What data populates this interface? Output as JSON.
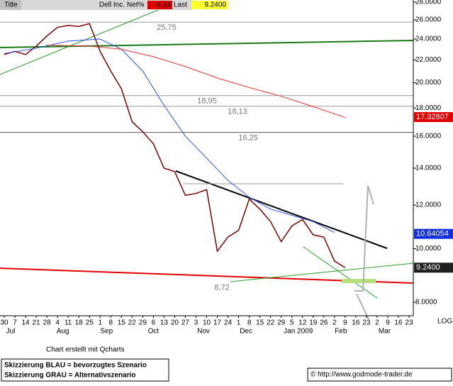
{
  "chart_data": {
    "type": "line",
    "log_scale": true,
    "header": {
      "title": "Title",
      "name": "Dell Inc.",
      "net_label": "Net%",
      "net": -4.14,
      "last_label": "Last",
      "last": {
        "value": 9.24,
        "label": "9.2400"
      }
    },
    "xlim": [
      -0.4,
      38.4
    ],
    "ylim": [
      7.56,
      28.25
    ],
    "xticks": [
      {
        "value": 0,
        "label": "30"
      },
      {
        "value": 1,
        "label": "7"
      },
      {
        "value": 2,
        "label": "14"
      },
      {
        "value": 3,
        "label": "21"
      },
      {
        "value": 4,
        "label": "28"
      },
      {
        "value": 5,
        "label": "4"
      },
      {
        "value": 6,
        "label": "11"
      },
      {
        "value": 7,
        "label": "18"
      },
      {
        "value": 8,
        "label": "25"
      },
      {
        "value": 9,
        "label": "1"
      },
      {
        "value": 10,
        "label": "8"
      },
      {
        "value": 11,
        "label": "15"
      },
      {
        "value": 12,
        "label": "22"
      },
      {
        "value": 13,
        "label": "29"
      },
      {
        "value": 14,
        "label": "6"
      },
      {
        "value": 15,
        "label": "13"
      },
      {
        "value": 16,
        "label": "20"
      },
      {
        "value": 17,
        "label": "27"
      },
      {
        "value": 18,
        "label": "3"
      },
      {
        "value": 19,
        "label": "10"
      },
      {
        "value": 20,
        "label": "17"
      },
      {
        "value": 21,
        "label": "24"
      },
      {
        "value": 22,
        "label": "1"
      },
      {
        "value": 23,
        "label": "8"
      },
      {
        "value": 24,
        "label": "15"
      },
      {
        "value": 25,
        "label": "22"
      },
      {
        "value": 26,
        "label": "29"
      },
      {
        "value": 27,
        "label": "5"
      },
      {
        "value": 28,
        "label": "12"
      },
      {
        "value": 29,
        "label": "19"
      },
      {
        "value": 30,
        "label": "26"
      },
      {
        "value": 31,
        "label": "2"
      },
      {
        "value": 32,
        "label": "9"
      },
      {
        "value": 33,
        "label": "16"
      },
      {
        "value": 34,
        "label": "23"
      },
      {
        "value": 35,
        "label": "2"
      },
      {
        "value": 36,
        "label": "9"
      },
      {
        "value": 37,
        "label": "16"
      },
      {
        "value": 38,
        "label": "23"
      }
    ],
    "months": [
      {
        "value": 0.6,
        "label": "Jul"
      },
      {
        "value": 5.5,
        "label": "Aug"
      },
      {
        "value": 9.6,
        "label": "Sep"
      },
      {
        "value": 14,
        "label": "Oct"
      },
      {
        "value": 18.7,
        "label": "Nov"
      },
      {
        "value": 22.7,
        "label": "Dec"
      },
      {
        "value": 27.6,
        "label": "Jan 2009"
      },
      {
        "value": 31.6,
        "label": "Feb"
      },
      {
        "value": 35.7,
        "label": "Mar"
      }
    ],
    "yticks": [
      {
        "value": 8,
        "label": "8.0000"
      },
      {
        "value": 10,
        "label": "10.0000"
      },
      {
        "value": 12,
        "label": "12.0000"
      },
      {
        "value": 14,
        "label": "14.0000"
      },
      {
        "value": 16,
        "label": "16.0000"
      },
      {
        "value": 18,
        "label": "18.0000"
      },
      {
        "value": 20,
        "label": "20.0000"
      },
      {
        "value": 22,
        "label": "22.0000"
      },
      {
        "value": 24,
        "label": "24.0000"
      },
      {
        "value": 26,
        "label": "26.0000"
      },
      {
        "value": 28,
        "label": "28.0000"
      }
    ],
    "axis_note": "LOG",
    "series": [
      {
        "color": "#7a0000",
        "x": [
          0,
          1,
          2,
          3,
          4,
          5,
          6,
          7,
          8,
          9,
          10,
          11,
          12,
          13,
          14,
          15,
          16,
          17,
          18,
          19,
          20,
          21,
          22,
          23,
          24,
          25,
          26,
          27,
          28,
          29,
          30,
          31,
          32
        ],
        "values": [
          22.5,
          22.8,
          22.5,
          23.3,
          24.3,
          25.2,
          25.4,
          25.3,
          25.6,
          22.8,
          21.0,
          19.5,
          17.0,
          16.3,
          15.5,
          14.0,
          13.8,
          12.5,
          12.6,
          12.8,
          9.9,
          10.5,
          10.8,
          12.3,
          11.8,
          11.2,
          10.3,
          11.0,
          11.3,
          10.6,
          10.5,
          9.5,
          9.24
        ]
      },
      {
        "color": "#3050e0",
        "x": [
          0,
          3,
          6,
          9,
          11,
          13,
          15,
          17,
          19,
          21,
          23,
          25,
          27,
          29,
          31
        ],
        "values": [
          22.6,
          23.1,
          23.8,
          24.0,
          23.0,
          21.0,
          18.2,
          16.0,
          14.6,
          13.3,
          12.4,
          11.8,
          11.5,
          11.2,
          10.7
        ]
      },
      {
        "color": "#e03030",
        "x": [
          4,
          8,
          11,
          14,
          17,
          20,
          23,
          26,
          29,
          32
        ],
        "values": [
          23.4,
          23.3,
          23.0,
          22.3,
          21.4,
          20.4,
          19.6,
          18.9,
          18.1,
          17.3
        ]
      }
    ],
    "levels": [
      {
        "value": 25.75,
        "label": "25,75"
      },
      {
        "value": 18.95,
        "label": "18,95"
      },
      {
        "value": 18.13,
        "label": "18,13"
      },
      {
        "value": 16.25,
        "label": "16,25"
      },
      {
        "value": 8.72,
        "label": "8,72"
      }
    ],
    "price_labels": [
      {
        "value": 17.32807,
        "color": "#e00000"
      },
      {
        "value": 10.64054,
        "color": "#1030e0"
      },
      {
        "value": 9.24,
        "label": "9.2400",
        "color": "#202020"
      }
    ],
    "credit": "Chart erstellt mit Qcharts",
    "notes": [
      "Skizzierung BLAU = bevorzugtes Szenario",
      "Skizzierung GRAU = Alternativszenario"
    ],
    "source": "© http://www.godmode-trader.de"
  }
}
